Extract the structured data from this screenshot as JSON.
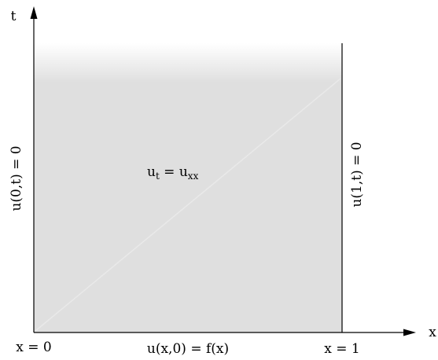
{
  "axes": {
    "x_label": "x",
    "t_label": "t"
  },
  "boundaries": {
    "left": "u(0,t) = 0",
    "right": "u(1,t) = 0",
    "bottom": "u(x,0) = f(x)"
  },
  "corners": {
    "x0": "x = 0",
    "x1": "x = 1"
  },
  "equation": {
    "lhs_base": "u",
    "lhs_sub": "t",
    "equals": " = ",
    "rhs_base": "u",
    "rhs_sub": "xx"
  },
  "colors": {
    "domain_fill": "#dfdfdf",
    "fade_top": "#ffffff",
    "lines": "#000000",
    "diagonal": "#e9e9e9"
  }
}
